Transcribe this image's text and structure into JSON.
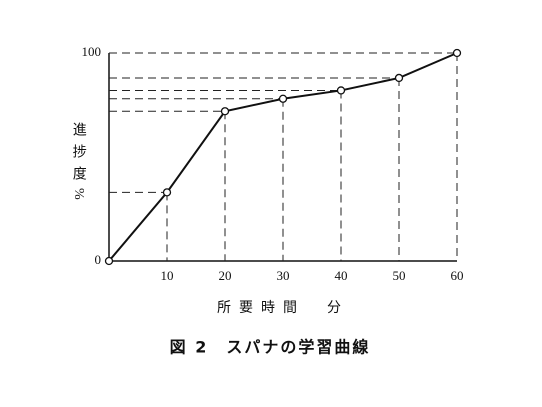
{
  "chart_data": {
    "type": "line",
    "title": "図 2　スパナの学習曲線",
    "xlabel": "所要時間　分",
    "ylabel": "進捗度%",
    "x": [
      0,
      10,
      20,
      30,
      40,
      50,
      60
    ],
    "series": [
      {
        "color": "#111111",
        "values": [
          0,
          33,
          72,
          78,
          82,
          88,
          100
        ]
      }
    ],
    "xlim": [
      0,
      60
    ],
    "ylim": [
      0,
      100
    ],
    "xticks": [
      10,
      20,
      30,
      40,
      50,
      60
    ],
    "yticks": [
      0,
      100
    ],
    "guides": true
  }
}
